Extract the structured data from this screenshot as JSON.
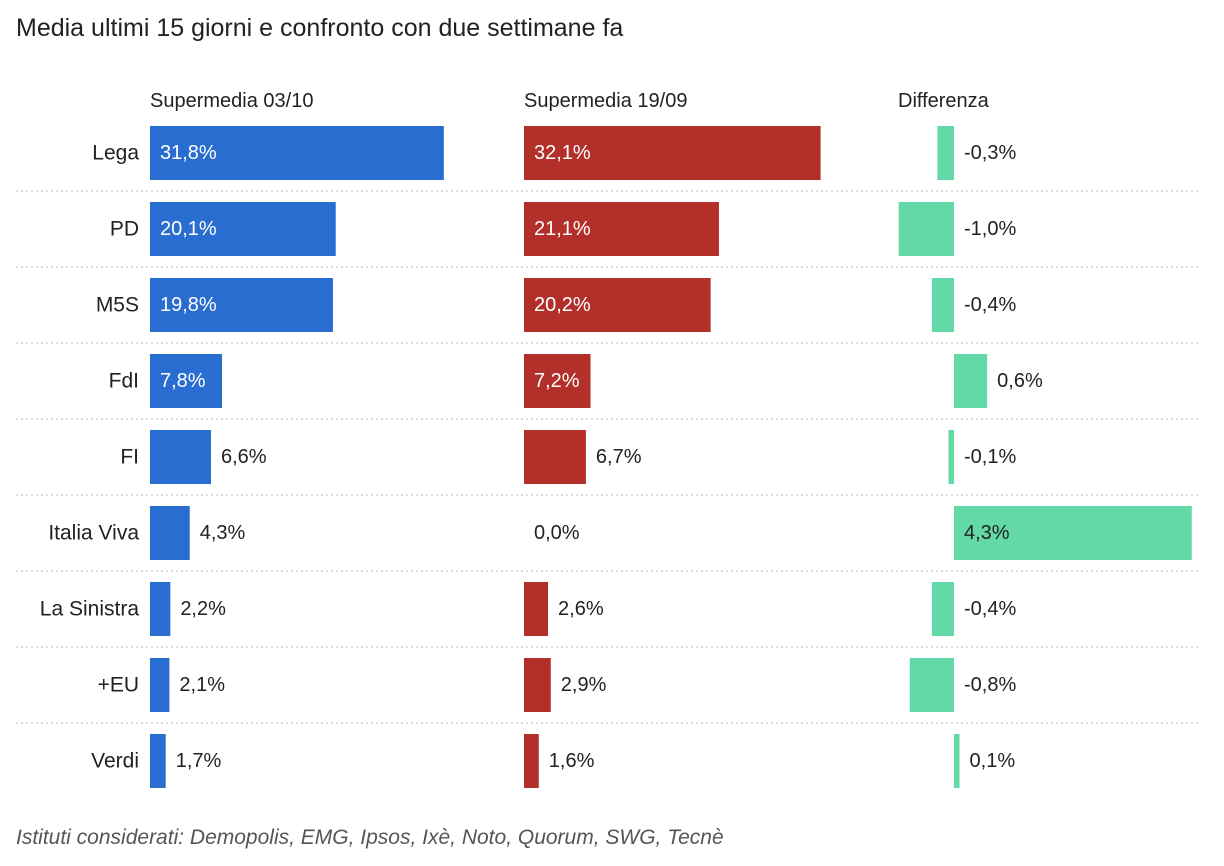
{
  "title": "Media ultimi 15 giorni e confronto con due settimane fa",
  "footer": "Istituti considerati: Demopolis, EMG, Ipsos, Ixè, Noto, Quorum, SWG, Tecnè",
  "colors": {
    "current": "#2a6dd1",
    "previous": "#b3302a",
    "difference": "#63d9a8"
  },
  "chart_data": {
    "type": "bar",
    "categories": [
      "Lega",
      "PD",
      "M5S",
      "FdI",
      "FI",
      "Italia Viva",
      "La Sinistra",
      "+EU",
      "Verdi"
    ],
    "series": [
      {
        "name": "Supermedia 03/10",
        "values": [
          31.8,
          20.1,
          19.8,
          7.8,
          6.6,
          4.3,
          2.2,
          2.1,
          1.7
        ],
        "labels": [
          "31,8%",
          "20,1%",
          "19,8%",
          "7,8%",
          "6,6%",
          "4,3%",
          "2,2%",
          "2,1%",
          "1,7%"
        ]
      },
      {
        "name": "Supermedia 19/09",
        "values": [
          32.1,
          21.1,
          20.2,
          7.2,
          6.7,
          0.0,
          2.6,
          2.9,
          1.6
        ],
        "labels": [
          "32,1%",
          "21,1%",
          "20,2%",
          "7,2%",
          "6,7%",
          "0,0%",
          "2,6%",
          "2,9%",
          "1,6%"
        ]
      },
      {
        "name": "Differenza",
        "values": [
          -0.3,
          -1.0,
          -0.4,
          0.6,
          -0.1,
          4.3,
          -0.4,
          -0.8,
          0.1
        ],
        "labels": [
          "-0,3%",
          "-1,0%",
          "-0,4%",
          "0,6%",
          "-0,1%",
          "4,3%",
          "-0,4%",
          "-0,8%",
          "0,1%"
        ]
      }
    ]
  }
}
